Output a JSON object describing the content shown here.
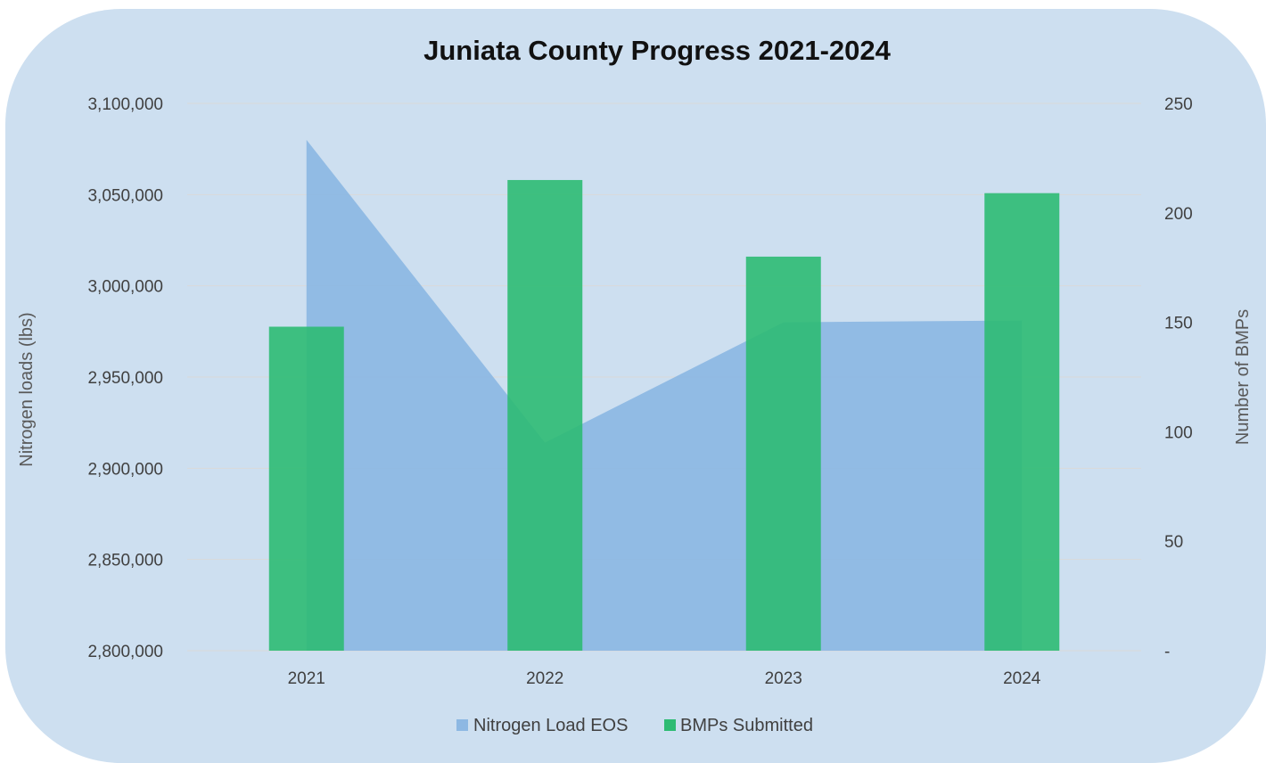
{
  "chart_data": {
    "type": "bar",
    "title": "Juniata County Progress 2021-2024",
    "categories": [
      "2021",
      "2022",
      "2023",
      "2024"
    ],
    "series": [
      {
        "name": "Nitrogen Load EOS",
        "kind": "area",
        "axis": "left",
        "color": "#8db8e3",
        "values": [
          3080000,
          2914000,
          2980000,
          2981000
        ]
      },
      {
        "name": "BMPs Submitted",
        "kind": "bar",
        "axis": "right",
        "color": "#2dbb73",
        "values": [
          148,
          215,
          180,
          209
        ]
      }
    ],
    "ylabel": "Nitrogen loads (lbs)",
    "ylim": [
      2800000,
      3100000
    ],
    "yticks": [
      "2,800,000",
      "2,850,000",
      "2,900,000",
      "2,950,000",
      "3,000,000",
      "3,050,000",
      "3,100,000"
    ],
    "y2label": "Number of BMPs",
    "y2lim": [
      0,
      250
    ],
    "y2ticks": [
      "-",
      "50",
      "100",
      "150",
      "200",
      "250"
    ],
    "grid": true,
    "legend": "bottom"
  }
}
